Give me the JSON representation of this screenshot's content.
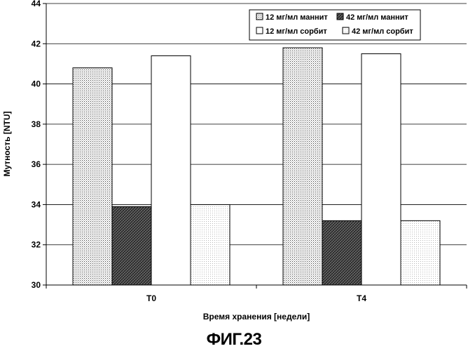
{
  "figure_caption": "ФИГ.23",
  "chart_data": {
    "type": "bar",
    "xlabel": "Время хранения [недели]",
    "ylabel": "Мутность [NTU]",
    "categories": [
      "T0",
      "T4"
    ],
    "ylim": [
      30,
      44
    ],
    "yticks": [
      30,
      32,
      34,
      36,
      38,
      40,
      42,
      44
    ],
    "grid": true,
    "legend_position": "top-right",
    "series": [
      {
        "name": "12 мг/мл маннит",
        "values": [
          40.8,
          41.8
        ],
        "pattern": "dots-dense"
      },
      {
        "name": "42 мг/мл маннит",
        "values": [
          33.9,
          33.2
        ],
        "pattern": "crosshatch"
      },
      {
        "name": "12 мг/мл сорбит",
        "values": [
          41.4,
          41.5
        ],
        "pattern": "white"
      },
      {
        "name": "42 мг/мл сорбит",
        "values": [
          34.0,
          33.2
        ],
        "pattern": "dots-light"
      }
    ]
  }
}
